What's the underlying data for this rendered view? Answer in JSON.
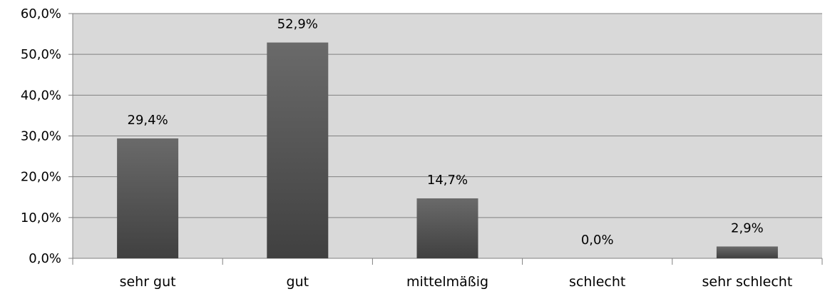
{
  "chart_data": {
    "type": "bar",
    "categories": [
      "sehr gut",
      "gut",
      "mittelmäßig",
      "schlecht",
      "sehr schlecht"
    ],
    "values": [
      29.4,
      52.9,
      14.7,
      0.0,
      2.9
    ],
    "data_labels": [
      "29,4%",
      "52,9%",
      "14,7%",
      "0,0%",
      "2,9%"
    ],
    "y_ticks": [
      0,
      10,
      20,
      30,
      40,
      50,
      60
    ],
    "y_tick_labels": [
      "0,0%",
      "10,0%",
      "20,0%",
      "30,0%",
      "40,0%",
      "50,0%",
      "60,0%"
    ],
    "ylim": [
      0,
      60
    ],
    "grid": true,
    "legend": "none",
    "colors": {
      "plot_background": "#d9d9d9",
      "bar_top": "#6a6a6a",
      "bar_bottom": "#404040",
      "gridline": "#808080",
      "axis": "#808080"
    }
  }
}
